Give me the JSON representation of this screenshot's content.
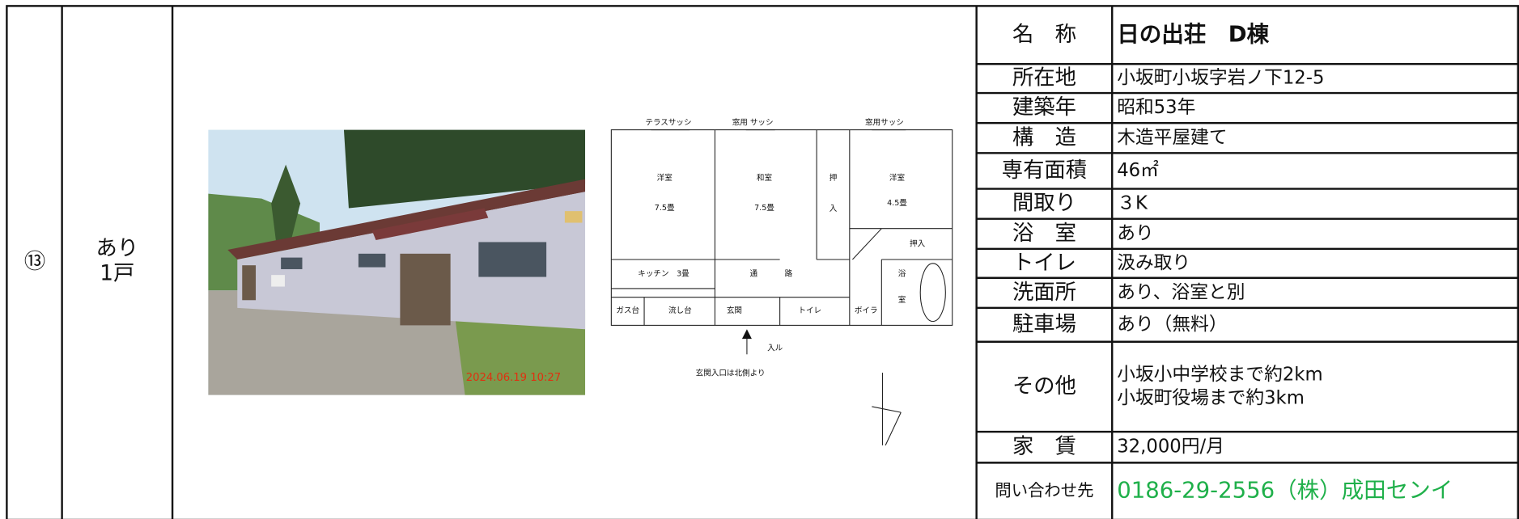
{
  "row": {
    "number": "⑬",
    "parking": [
      "あり",
      "1戸"
    ]
  },
  "photo": {
    "timestamp": "2024.06.19 10:27"
  },
  "floor_plan": {
    "labels": [
      "テラスサッシ",
      "窓用 サッシ",
      "窓用サッシ",
      "洋室",
      "7.5畳",
      "和室",
      "7.5畳",
      "押",
      "入",
      "洋室",
      "4.5畳",
      "押入",
      "キッチン　3畳",
      "通",
      "路",
      "浴",
      "室",
      "ガス台",
      "流し台",
      "玄関",
      "トイレ",
      "ボイラ"
    ],
    "entrance": "入ル",
    "note": "玄関入口は北側より"
  },
  "info": [
    {
      "label": "名　称",
      "value": [
        "日の出荘　D棟"
      ]
    },
    {
      "label": "所在地",
      "value": [
        "小坂町小坂字岩ノ下12-5"
      ]
    },
    {
      "label": "建築年",
      "value": [
        "昭和53年"
      ]
    },
    {
      "label": "構　造",
      "value": [
        "木造平屋建て"
      ]
    },
    {
      "label": "専有面積",
      "value": [
        "46㎡"
      ]
    },
    {
      "label": "間取り",
      "value": [
        "３K"
      ]
    },
    {
      "label": "浴　室",
      "value": [
        "あり"
      ]
    },
    {
      "label": "トイレ",
      "value": [
        "汲み取り"
      ]
    },
    {
      "label": "洗面所",
      "value": [
        "あり、浴室と別"
      ]
    },
    {
      "label": "駐車場",
      "value": [
        "あり（無料）"
      ]
    },
    {
      "label": "その他",
      "value": [
        "小坂小中学校まで約2km",
        "小坂町役場まで約3km"
      ]
    },
    {
      "label": "家　賃",
      "value": [
        "32,000円/月"
      ]
    },
    {
      "label": "問い合わせ先",
      "value": [
        "0186-29-2556（株）成田センイ"
      ]
    }
  ]
}
